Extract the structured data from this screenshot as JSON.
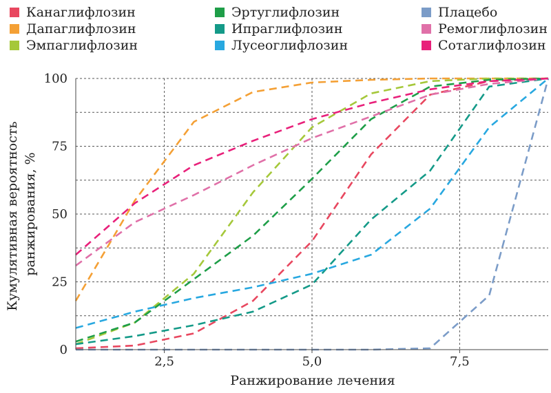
{
  "chart_data": {
    "type": "line",
    "xlabel": "Ранжирование лечения",
    "ylabel_lines": [
      "Кумулятивная вероятность",
      "ранжирования, %"
    ],
    "xlim": [
      1,
      9
    ],
    "ylim": [
      0,
      100
    ],
    "x_ticks": [
      2.5,
      5.0,
      7.5
    ],
    "x_tick_labels": [
      "2,5",
      "5,0",
      "7,5"
    ],
    "y_ticks": [
      0,
      25,
      50,
      75,
      100
    ],
    "y_tick_labels": [
      "0",
      "25",
      "50",
      "75",
      "100"
    ],
    "grid": "horizontal-dashed",
    "legend_position": "top",
    "x": [
      1,
      2,
      3,
      4,
      5,
      6,
      7,
      8,
      9
    ],
    "series": [
      {
        "name": "Канаглифлозин",
        "color": "#e8475f",
        "values": [
          0.5,
          1.5,
          6,
          18,
          40,
          72,
          94,
          99,
          100
        ]
      },
      {
        "name": "Дапаглифлозин",
        "color": "#f4a035",
        "values": [
          18,
          55,
          84,
          95,
          98.5,
          99.5,
          100,
          100,
          100
        ]
      },
      {
        "name": "Эмпаглифлозин",
        "color": "#a5c83a",
        "values": [
          2,
          10,
          28,
          58,
          82,
          94.5,
          99,
          100,
          100
        ]
      },
      {
        "name": "Эртуглифлозин",
        "color": "#1e9e48",
        "values": [
          3,
          10,
          26,
          42,
          63,
          85,
          97,
          99.5,
          100
        ]
      },
      {
        "name": "Ипраглифлозин",
        "color": "#149a88",
        "values": [
          2,
          5,
          9,
          14,
          24,
          48,
          66,
          97,
          100
        ]
      },
      {
        "name": "Лусеоглифлозин",
        "color": "#28a8e0",
        "values": [
          8,
          14,
          19,
          23,
          28,
          35,
          52,
          82,
          100
        ]
      },
      {
        "name": "Плацебо",
        "color": "#7b9cc8",
        "values": [
          0,
          0,
          0,
          0,
          0,
          0,
          0.5,
          20,
          100
        ]
      },
      {
        "name": "Ремоглифлозин",
        "color": "#e070a8",
        "values": [
          31,
          47,
          57,
          68,
          78,
          86,
          94,
          98,
          100
        ]
      },
      {
        "name": "Сотаглифлозин",
        "color": "#e8207a",
        "values": [
          35,
          54,
          68,
          77,
          85,
          91,
          96,
          99,
          100
        ]
      }
    ]
  }
}
